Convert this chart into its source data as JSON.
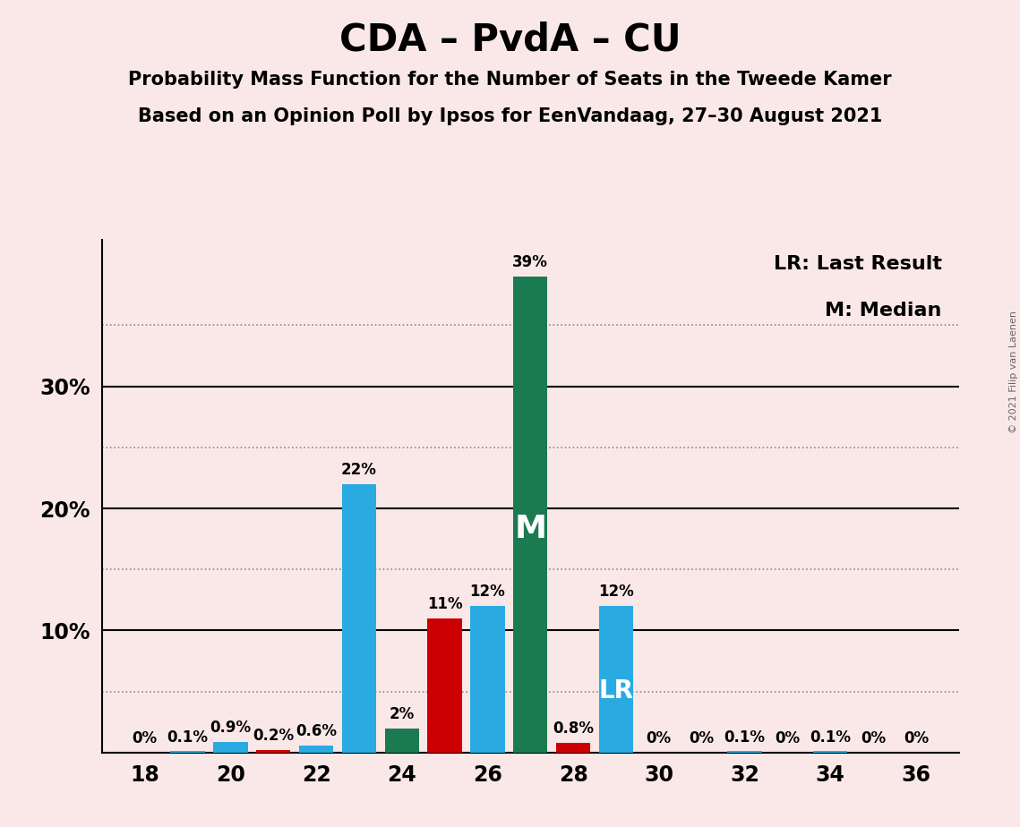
{
  "title": "CDA – PvdA – CU",
  "subtitle1": "Probability Mass Function for the Number of Seats in the Tweede Kamer",
  "subtitle2": "Based on an Opinion Poll by Ipsos for EenVandaag, 27–30 August 2021",
  "copyright": "© 2021 Filip van Laenen",
  "legend_lr": "LR: Last Result",
  "legend_m": "M: Median",
  "background_color": "#fae8e8",
  "xlim": [
    17,
    37
  ],
  "ylim": [
    0,
    42
  ],
  "ytick_major": [
    10,
    20,
    30
  ],
  "ytick_major_labels": [
    "10%",
    "20%",
    "30%"
  ],
  "ytick_dotted": [
    5,
    15,
    25,
    35
  ],
  "xticks": [
    18,
    20,
    22,
    24,
    26,
    28,
    30,
    32,
    34,
    36
  ],
  "seats": [
    18,
    19,
    20,
    21,
    22,
    23,
    24,
    25,
    26,
    27,
    28,
    29,
    30,
    31,
    32,
    33,
    34,
    35,
    36
  ],
  "values": [
    0.0,
    0.1,
    0.9,
    0.2,
    0.6,
    22.0,
    2.0,
    11.0,
    12.0,
    39.0,
    0.8,
    12.0,
    0.0,
    0.0,
    0.1,
    0.0,
    0.1,
    0.0,
    0.0
  ],
  "colors": [
    "#29abe2",
    "#29abe2",
    "#29abe2",
    "#cc0000",
    "#29abe2",
    "#29abe2",
    "#1a7a50",
    "#cc0000",
    "#29abe2",
    "#1a7a50",
    "#cc0000",
    "#29abe2",
    "#29abe2",
    "#29abe2",
    "#29abe2",
    "#29abe2",
    "#29abe2",
    "#29abe2",
    "#29abe2"
  ],
  "bar_labels": [
    "0%",
    "0.1%",
    "0.9%",
    "0.2%",
    "0.6%",
    "22%",
    "2%",
    "11%",
    "12%",
    "39%",
    "0.8%",
    "12%",
    "0%",
    "0%",
    "0.1%",
    "0%",
    "0.1%",
    "0%",
    "0%"
  ],
  "median_seat": 27,
  "lr_seat": 29,
  "bar_width": 0.8,
  "title_fontsize": 30,
  "subtitle_fontsize": 15,
  "label_fontsize": 12,
  "tick_fontsize": 17,
  "m_fontsize": 26,
  "lr_fontsize": 20,
  "legend_fontsize": 16,
  "copyright_fontsize": 8
}
